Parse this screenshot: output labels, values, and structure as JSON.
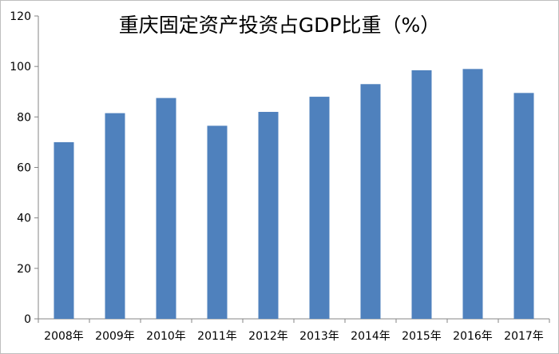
{
  "chart_data": {
    "type": "bar",
    "title": "重庆固定资产投资占GDP比重（%）",
    "xlabel": "",
    "ylabel": "",
    "ylim": [
      0,
      120
    ],
    "yticks": [
      0,
      20,
      40,
      60,
      80,
      100,
      120
    ],
    "categories": [
      "2008年",
      "2009年",
      "2010年",
      "2011年",
      "2012年",
      "2013年",
      "2014年",
      "2015年",
      "2016年",
      "2017年"
    ],
    "values": [
      70,
      81.5,
      87.5,
      76.5,
      82,
      88,
      93,
      98.5,
      99,
      89.5
    ],
    "grid": false,
    "legend": "none",
    "colors": {
      "bar": "#4F81BD",
      "axis": "#868686",
      "tick_label": "#000000"
    }
  }
}
